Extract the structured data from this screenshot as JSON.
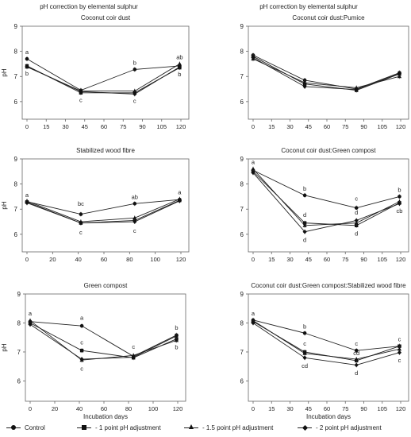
{
  "figure": {
    "column_titles": [
      "pH correction by elemental sulphur",
      "pH correction by elemental sulphur"
    ],
    "xlabel": "Incubation days",
    "ylabel": "pH",
    "legend": [
      {
        "label": "Control",
        "marker": "circle"
      },
      {
        "label": "- 1 point pH adjustment",
        "marker": "square"
      },
      {
        "label": "- 1.5 point pH adjustment",
        "marker": "triangle"
      },
      {
        "label": "- 2 point pH adjustment",
        "marker": "diamond"
      }
    ]
  },
  "chart_data": [
    {
      "type": "line",
      "title": "Coconut coir dust",
      "xlabel": "",
      "ylabel": "pH",
      "x": [
        0,
        42,
        84,
        119
      ],
      "xticks": [
        0,
        15,
        30,
        45,
        60,
        75,
        90,
        105,
        120
      ],
      "yticks": [
        6,
        7,
        8,
        9
      ],
      "ylim": [
        5.3,
        9
      ],
      "series": [
        {
          "name": "Control",
          "marker": "circle",
          "values": [
            7.7,
            6.45,
            7.28,
            7.42
          ]
        },
        {
          "name": "- 1 point pH adjustment",
          "marker": "square",
          "values": [
            7.42,
            6.35,
            6.35,
            7.35
          ]
        },
        {
          "name": "- 1.5 point pH adjustment",
          "marker": "triangle",
          "values": [
            7.38,
            6.42,
            6.42,
            7.5
          ]
        },
        {
          "name": "- 2 point pH adjustment",
          "marker": "diamond",
          "values": [
            7.4,
            6.4,
            6.3,
            7.38
          ]
        }
      ],
      "annotations": [
        {
          "x": 0,
          "y": 7.7,
          "text": "a",
          "pos": "above"
        },
        {
          "x": 0,
          "y": 7.38,
          "text": "b",
          "pos": "below"
        },
        {
          "x": 42,
          "y": 6.33,
          "text": "c",
          "pos": "below"
        },
        {
          "x": 84,
          "y": 7.28,
          "text": "b",
          "pos": "above"
        },
        {
          "x": 84,
          "y": 6.3,
          "text": "c",
          "pos": "below"
        },
        {
          "x": 119,
          "y": 7.5,
          "text": "ab",
          "pos": "above"
        },
        {
          "x": 119,
          "y": 7.35,
          "text": "b",
          "pos": "below"
        }
      ]
    },
    {
      "type": "line",
      "title": "Coconut coir dust:Pumice",
      "xlabel": "",
      "ylabel": "",
      "x": [
        0,
        42,
        84,
        119
      ],
      "xticks": [
        0,
        15,
        30,
        45,
        60,
        75,
        90,
        105,
        120
      ],
      "yticks": [
        6,
        7,
        8,
        9
      ],
      "ylim": [
        5.3,
        9
      ],
      "series": [
        {
          "name": "Control",
          "marker": "circle",
          "values": [
            7.85,
            6.85,
            6.5,
            7.15
          ]
        },
        {
          "name": "- 1 point pH adjustment",
          "marker": "square",
          "values": [
            7.8,
            6.7,
            6.45,
            7.1
          ]
        },
        {
          "name": "- 1.5 point pH adjustment",
          "marker": "triangle",
          "values": [
            7.7,
            6.75,
            6.55,
            7.0
          ]
        },
        {
          "name": "- 2 point pH adjustment",
          "marker": "diamond",
          "values": [
            7.75,
            6.6,
            6.48,
            7.12
          ]
        }
      ],
      "annotations": []
    },
    {
      "type": "line",
      "title": "Stabilized wood fibre",
      "xlabel": "",
      "ylabel": "pH",
      "x": [
        0,
        42,
        84,
        119
      ],
      "xticks": [
        0,
        20,
        40,
        60,
        80,
        100,
        120
      ],
      "yticks": [
        6,
        7,
        8,
        9
      ],
      "ylim": [
        5.3,
        9
      ],
      "series": [
        {
          "name": "Control",
          "marker": "circle",
          "values": [
            7.3,
            6.8,
            7.22,
            7.38
          ]
        },
        {
          "name": "- 1 point pH adjustment",
          "marker": "square",
          "values": [
            7.28,
            6.45,
            6.55,
            7.35
          ]
        },
        {
          "name": "- 1.5 point pH adjustment",
          "marker": "triangle",
          "values": [
            7.32,
            6.5,
            6.65,
            7.4
          ]
        },
        {
          "name": "- 2 point pH adjustment",
          "marker": "diamond",
          "values": [
            7.25,
            6.45,
            6.5,
            7.33
          ]
        }
      ],
      "annotations": [
        {
          "x": 0,
          "y": 7.3,
          "text": "a",
          "pos": "above"
        },
        {
          "x": 42,
          "y": 6.95,
          "text": "bc",
          "pos": "above"
        },
        {
          "x": 42,
          "y": 6.35,
          "text": "c",
          "pos": "below"
        },
        {
          "x": 84,
          "y": 7.22,
          "text": "ab",
          "pos": "above"
        },
        {
          "x": 84,
          "y": 6.4,
          "text": "c",
          "pos": "below"
        },
        {
          "x": 119,
          "y": 7.4,
          "text": "a",
          "pos": "above"
        }
      ]
    },
    {
      "type": "line",
      "title": "Coconut coir dust:Green compost",
      "xlabel": "",
      "ylabel": "",
      "x": [
        0,
        42,
        84,
        119
      ],
      "xticks": [
        0,
        15,
        30,
        45,
        60,
        75,
        90,
        105,
        120
      ],
      "yticks": [
        6,
        7,
        8,
        9
      ],
      "ylim": [
        5.3,
        9
      ],
      "series": [
        {
          "name": "Control",
          "marker": "circle",
          "values": [
            8.55,
            7.55,
            7.05,
            7.5
          ]
        },
        {
          "name": "- 1 point pH adjustment",
          "marker": "square",
          "values": [
            8.5,
            6.45,
            6.35,
            7.25
          ]
        },
        {
          "name": "- 1.5 point pH adjustment",
          "marker": "triangle",
          "values": [
            8.6,
            6.35,
            6.45,
            7.3
          ]
        },
        {
          "name": "- 2 point pH adjustment",
          "marker": "diamond",
          "values": [
            8.45,
            6.1,
            6.55,
            7.22
          ]
        }
      ],
      "annotations": [
        {
          "x": 0,
          "y": 8.6,
          "text": "a",
          "pos": "above"
        },
        {
          "x": 42,
          "y": 7.55,
          "text": "b",
          "pos": "above"
        },
        {
          "x": 42,
          "y": 6.5,
          "text": "d",
          "pos": "above"
        },
        {
          "x": 42,
          "y": 6.05,
          "text": "d",
          "pos": "below"
        },
        {
          "x": 84,
          "y": 7.15,
          "text": "c",
          "pos": "above"
        },
        {
          "x": 84,
          "y": 6.6,
          "text": "d",
          "pos": "above"
        },
        {
          "x": 84,
          "y": 6.3,
          "text": "d",
          "pos": "below"
        },
        {
          "x": 119,
          "y": 7.5,
          "text": "b",
          "pos": "above"
        },
        {
          "x": 119,
          "y": 7.2,
          "text": "cb",
          "pos": "below"
        }
      ]
    },
    {
      "type": "line",
      "title": "Green compost",
      "xlabel": "Incubation days",
      "ylabel": "pH",
      "x": [
        0,
        42,
        84,
        119
      ],
      "xticks": [
        0,
        20,
        40,
        60,
        80,
        100,
        120
      ],
      "yticks": [
        6,
        7,
        8,
        9
      ],
      "ylim": [
        5.3,
        9
      ],
      "series": [
        {
          "name": "Control",
          "marker": "circle",
          "values": [
            8.05,
            7.9,
            6.85,
            7.58
          ]
        },
        {
          "name": "- 1 point pH adjustment",
          "marker": "square",
          "values": [
            8.0,
            7.05,
            6.8,
            7.45
          ]
        },
        {
          "name": "- 1.5 point pH adjustment",
          "marker": "triangle",
          "values": [
            8.08,
            6.72,
            6.88,
            7.4
          ]
        },
        {
          "name": "- 2 point pH adjustment",
          "marker": "diamond",
          "values": [
            7.95,
            6.75,
            6.82,
            7.55
          ]
        }
      ],
      "annotations": [
        {
          "x": 0,
          "y": 8.1,
          "text": "a",
          "pos": "above"
        },
        {
          "x": 42,
          "y": 7.95,
          "text": "a",
          "pos": "above"
        },
        {
          "x": 42,
          "y": 7.1,
          "text": "c",
          "pos": "above"
        },
        {
          "x": 42,
          "y": 6.65,
          "text": "c",
          "pos": "below"
        },
        {
          "x": 84,
          "y": 6.95,
          "text": "c",
          "pos": "above"
        },
        {
          "x": 119,
          "y": 7.6,
          "text": "b",
          "pos": "above"
        },
        {
          "x": 119,
          "y": 7.4,
          "text": "b",
          "pos": "below"
        }
      ]
    },
    {
      "type": "line",
      "title": "Coconut coir dust:Green compost:Stabilized wood fibre",
      "xlabel": "Incubation days",
      "ylabel": "",
      "x": [
        0,
        42,
        84,
        119
      ],
      "xticks": [
        0,
        15,
        30,
        45,
        60,
        75,
        90,
        105,
        120
      ],
      "yticks": [
        6,
        7,
        8,
        9
      ],
      "ylim": [
        5.3,
        9
      ],
      "series": [
        {
          "name": "Control",
          "marker": "circle",
          "values": [
            8.1,
            7.65,
            7.05,
            7.2
          ]
        },
        {
          "name": "- 1 point pH adjustment",
          "marker": "square",
          "values": [
            8.05,
            7.0,
            6.7,
            7.2
          ]
        },
        {
          "name": "- 1.5 point pH adjustment",
          "marker": "triangle",
          "values": [
            8.08,
            6.95,
            6.75,
            7.1
          ]
        },
        {
          "name": "- 2 point pH adjustment",
          "marker": "diamond",
          "values": [
            8.0,
            6.8,
            6.55,
            6.98
          ]
        }
      ],
      "annotations": [
        {
          "x": 0,
          "y": 8.1,
          "text": "a",
          "pos": "above"
        },
        {
          "x": 42,
          "y": 7.65,
          "text": "b",
          "pos": "above"
        },
        {
          "x": 42,
          "y": 7.05,
          "text": "c",
          "pos": "above"
        },
        {
          "x": 42,
          "y": 6.75,
          "text": "cd",
          "pos": "below"
        },
        {
          "x": 84,
          "y": 7.05,
          "text": "c",
          "pos": "above"
        },
        {
          "x": 84,
          "y": 6.72,
          "text": "cd",
          "pos": "above"
        },
        {
          "x": 84,
          "y": 6.5,
          "text": "d",
          "pos": "below"
        },
        {
          "x": 119,
          "y": 7.2,
          "text": "c",
          "pos": "above"
        },
        {
          "x": 119,
          "y": 6.95,
          "text": "c",
          "pos": "below"
        }
      ]
    }
  ]
}
